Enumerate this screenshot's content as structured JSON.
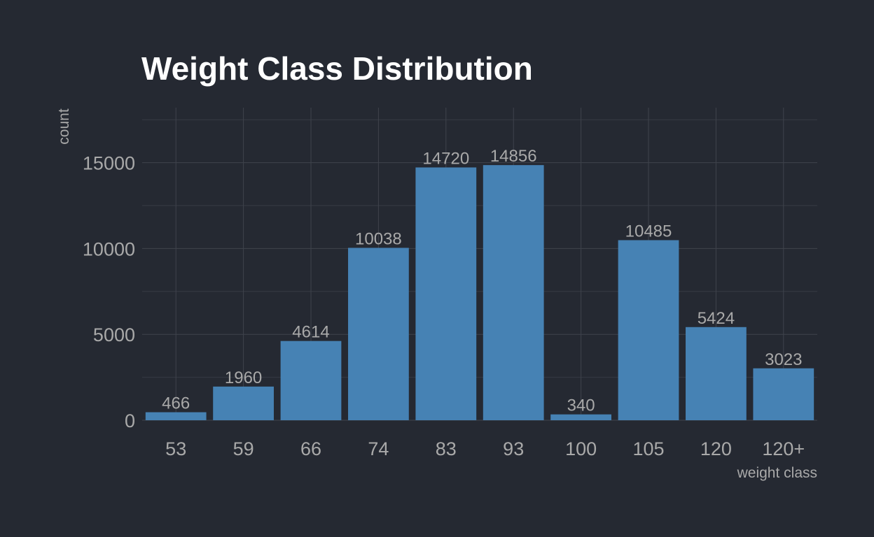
{
  "chart_data": {
    "type": "bar",
    "title": "Weight Class Distribution",
    "xlabel": "weight class",
    "ylabel": "count",
    "categories": [
      "53",
      "59",
      "66",
      "74",
      "83",
      "93",
      "100",
      "105",
      "120",
      "120+"
    ],
    "values": [
      466,
      1960,
      4614,
      10038,
      14720,
      14856,
      340,
      10485,
      5424,
      3023
    ],
    "y_ticks": [
      0,
      5000,
      10000,
      15000
    ],
    "ylim": [
      0,
      17500
    ],
    "grid": true,
    "legend": "none",
    "colors": {
      "background": "#252932",
      "bar": "#4682b4",
      "title": "#ffffff",
      "text": "#a9a9a9",
      "grid_major": "#3f434c",
      "grid_minor": "#373b44"
    }
  }
}
